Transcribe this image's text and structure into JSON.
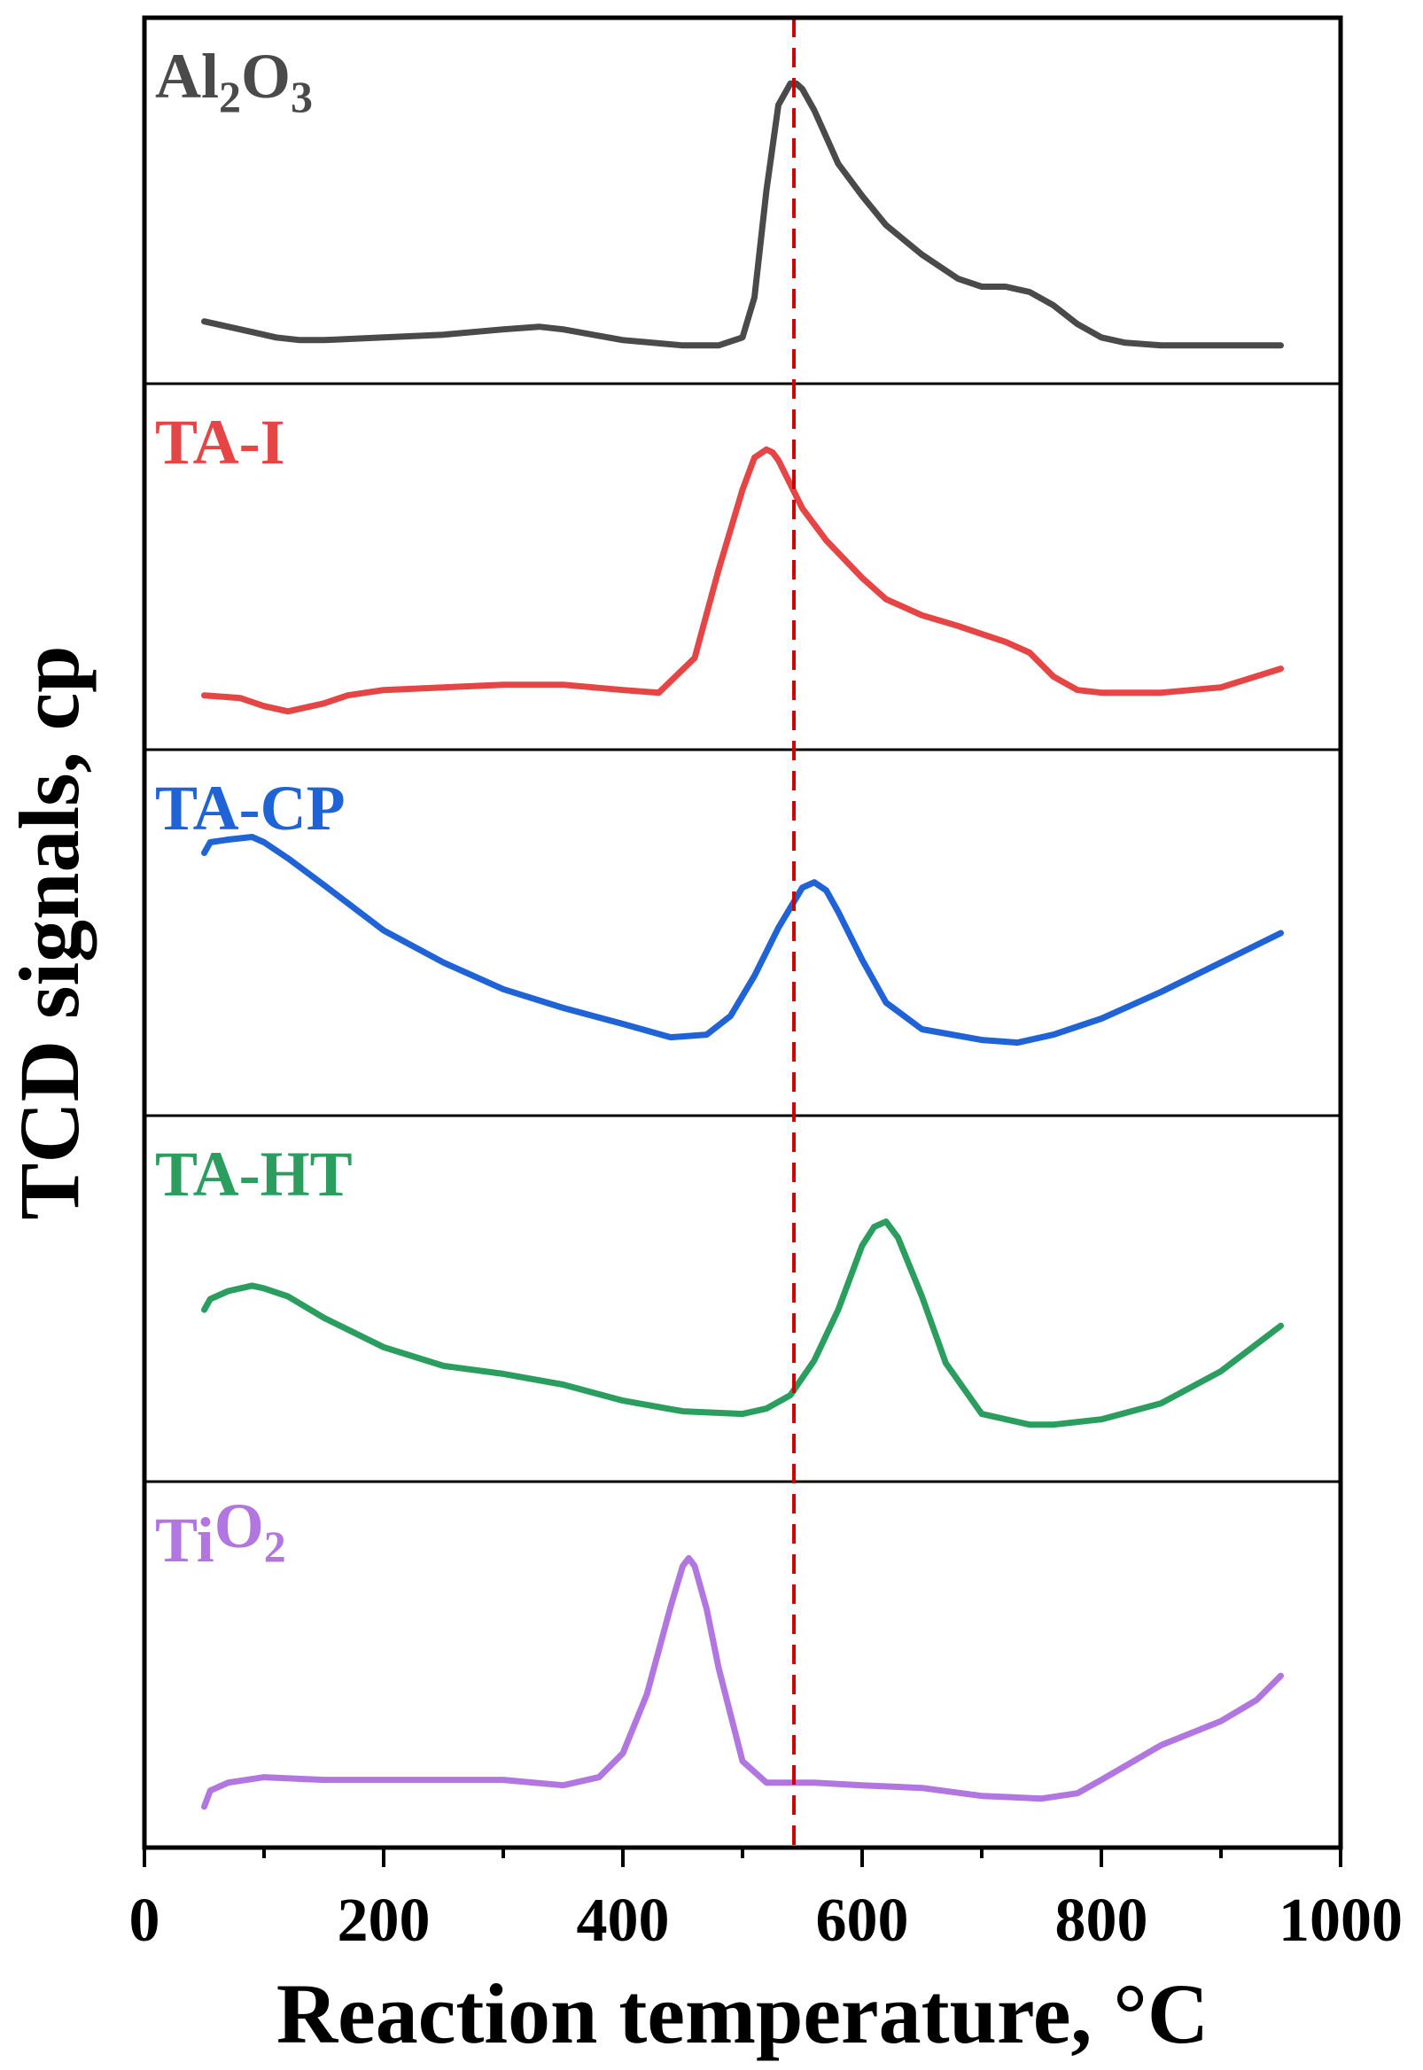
{
  "chart_data": {
    "type": "line",
    "xlabel": "Reaction temperature, °C",
    "ylabel": "TCD signals, cp",
    "xlim": [
      0,
      1000
    ],
    "xticks": [
      0,
      200,
      400,
      600,
      800,
      1000
    ],
    "reference_line": {
      "x": 543,
      "style": "dashed",
      "color": "#cc0000"
    },
    "panels": [
      {
        "name": "Al2O3",
        "label_main": "Al",
        "label_sub1": "2",
        "label_mid": "O",
        "label_sub2": "3",
        "color": "#4a4a4a",
        "x": [
          50,
          70,
          90,
          110,
          130,
          150,
          200,
          250,
          300,
          330,
          350,
          400,
          450,
          480,
          500,
          510,
          520,
          530,
          540,
          545,
          550,
          560,
          570,
          580,
          600,
          620,
          650,
          680,
          700,
          720,
          740,
          760,
          780,
          800,
          820,
          850,
          900,
          950
        ],
        "y": [
          0.11,
          0.09,
          0.07,
          0.05,
          0.04,
          0.04,
          0.05,
          0.06,
          0.08,
          0.09,
          0.08,
          0.04,
          0.02,
          0.02,
          0.05,
          0.2,
          0.6,
          0.92,
          1.0,
          1.0,
          0.98,
          0.9,
          0.8,
          0.7,
          0.58,
          0.47,
          0.36,
          0.27,
          0.24,
          0.24,
          0.22,
          0.17,
          0.1,
          0.05,
          0.03,
          0.02,
          0.02,
          0.02
        ]
      },
      {
        "name": "TA-I",
        "label_main": "TA-I",
        "color": "#e64545",
        "x": [
          50,
          80,
          100,
          120,
          150,
          170,
          200,
          250,
          300,
          350,
          400,
          430,
          460,
          480,
          500,
          510,
          520,
          525,
          530,
          540,
          550,
          570,
          600,
          620,
          650,
          680,
          700,
          720,
          740,
          760,
          780,
          800,
          850,
          900,
          950
        ],
        "y": [
          0.08,
          0.07,
          0.04,
          0.02,
          0.05,
          0.08,
          0.1,
          0.11,
          0.12,
          0.12,
          0.1,
          0.09,
          0.22,
          0.55,
          0.85,
          0.97,
          1.0,
          0.99,
          0.96,
          0.87,
          0.78,
          0.66,
          0.52,
          0.44,
          0.38,
          0.34,
          0.31,
          0.28,
          0.24,
          0.15,
          0.1,
          0.09,
          0.09,
          0.11,
          0.18
        ]
      },
      {
        "name": "TA-CP",
        "label_main": "TA-CP",
        "color": "#1f63d6",
        "x": [
          50,
          55,
          70,
          90,
          100,
          120,
          150,
          200,
          250,
          300,
          350,
          400,
          440,
          470,
          490,
          510,
          530,
          550,
          560,
          570,
          580,
          600,
          620,
          650,
          700,
          730,
          760,
          780,
          800,
          850,
          900,
          950
        ],
        "y": [
          0.86,
          0.9,
          0.91,
          0.92,
          0.9,
          0.84,
          0.74,
          0.57,
          0.45,
          0.35,
          0.28,
          0.22,
          0.17,
          0.18,
          0.25,
          0.4,
          0.58,
          0.73,
          0.75,
          0.72,
          0.64,
          0.46,
          0.3,
          0.2,
          0.16,
          0.15,
          0.18,
          0.21,
          0.24,
          0.34,
          0.45,
          0.56
        ]
      },
      {
        "name": "TA-HT",
        "label_main": "TA-HT",
        "color": "#2b9e5f",
        "x": [
          50,
          55,
          70,
          90,
          100,
          120,
          150,
          200,
          250,
          300,
          350,
          400,
          450,
          500,
          520,
          540,
          560,
          580,
          600,
          610,
          620,
          630,
          650,
          670,
          700,
          740,
          760,
          800,
          850,
          900,
          950
        ],
        "y": [
          0.52,
          0.56,
          0.59,
          0.61,
          0.6,
          0.57,
          0.49,
          0.38,
          0.31,
          0.28,
          0.24,
          0.18,
          0.14,
          0.13,
          0.15,
          0.2,
          0.33,
          0.52,
          0.76,
          0.83,
          0.85,
          0.79,
          0.57,
          0.32,
          0.13,
          0.09,
          0.09,
          0.11,
          0.17,
          0.29,
          0.46
        ]
      },
      {
        "name": "TiO2",
        "label_main": "Ti",
        "label_mid": "O",
        "label_sub2": "2",
        "color": "#b176e0",
        "x": [
          50,
          55,
          70,
          100,
          150,
          200,
          250,
          300,
          350,
          380,
          400,
          420,
          440,
          450,
          455,
          460,
          470,
          480,
          500,
          520,
          540,
          560,
          600,
          650,
          700,
          750,
          780,
          800,
          850,
          900,
          930,
          950
        ],
        "y": [
          0.03,
          0.09,
          0.12,
          0.14,
          0.13,
          0.13,
          0.13,
          0.13,
          0.11,
          0.14,
          0.23,
          0.45,
          0.78,
          0.93,
          0.96,
          0.93,
          0.77,
          0.55,
          0.2,
          0.12,
          0.12,
          0.12,
          0.11,
          0.1,
          0.07,
          0.06,
          0.08,
          0.13,
          0.26,
          0.35,
          0.43,
          0.52
        ]
      }
    ]
  }
}
